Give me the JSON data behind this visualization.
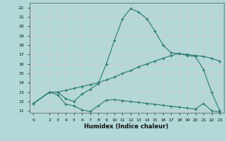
{
  "xlabel": "Humidex (Indice chaleur)",
  "bg_color": "#b2d8d8",
  "grid_color": "#c8e8e0",
  "line_color": "#2a7a6e",
  "xlim": [
    -0.5,
    23.5
  ],
  "ylim": [
    10.8,
    22.5
  ],
  "xticks": [
    0,
    2,
    3,
    4,
    5,
    6,
    7,
    8,
    9,
    10,
    11,
    12,
    13,
    14,
    15,
    16,
    17,
    18,
    19,
    20,
    21,
    22,
    23
  ],
  "yticks": [
    11,
    12,
    13,
    14,
    15,
    16,
    17,
    18,
    19,
    20,
    21,
    22
  ],
  "line1_x": [
    0,
    2,
    3,
    4,
    5,
    6,
    7,
    8,
    9,
    10,
    11,
    12,
    13,
    14,
    15,
    16,
    17,
    18,
    19,
    20,
    21,
    22,
    23
  ],
  "line1_y": [
    11.8,
    13.0,
    12.7,
    11.7,
    11.55,
    11.1,
    10.95,
    11.55,
    12.15,
    12.2,
    12.1,
    12.0,
    11.9,
    11.8,
    11.7,
    11.6,
    11.5,
    11.4,
    11.3,
    11.2,
    11.8,
    11.0,
    10.9
  ],
  "line2_x": [
    0,
    2,
    3,
    4,
    5,
    6,
    7,
    8,
    9,
    10,
    11,
    12,
    13,
    14,
    15,
    16,
    17,
    18,
    19,
    20,
    21,
    22,
    23
  ],
  "line2_y": [
    11.8,
    13.0,
    13.0,
    12.3,
    12.0,
    12.8,
    13.3,
    13.9,
    16.0,
    18.5,
    20.8,
    21.9,
    21.5,
    20.8,
    19.5,
    18.0,
    17.2,
    17.1,
    16.9,
    16.8,
    15.4,
    13.0,
    11.0
  ],
  "line3_x": [
    0,
    2,
    3,
    4,
    5,
    6,
    7,
    8,
    9,
    10,
    11,
    12,
    13,
    14,
    15,
    16,
    17,
    18,
    19,
    20,
    21,
    22,
    23
  ],
  "line3_y": [
    11.8,
    13.0,
    13.0,
    13.2,
    13.4,
    13.6,
    13.8,
    14.0,
    14.3,
    14.6,
    15.0,
    15.3,
    15.7,
    16.0,
    16.3,
    16.6,
    16.9,
    17.1,
    17.0,
    16.9,
    16.8,
    16.6,
    16.3
  ]
}
